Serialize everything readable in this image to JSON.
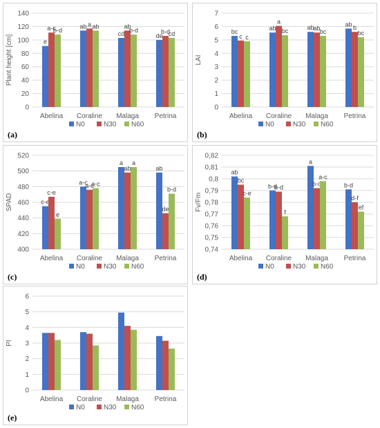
{
  "colors": {
    "N0": "#4472C4",
    "N30": "#C0504D",
    "N60": "#9BBB59"
  },
  "chart_data": [
    {
      "type": "bar",
      "panel_label": "(a)",
      "categories": [
        "Abelina",
        "Coraline",
        "Malaga",
        "Petrina"
      ],
      "series": [
        {
          "name": "N0",
          "values": [
            91,
            114,
            103,
            100
          ]
        },
        {
          "name": "N30",
          "values": [
            111,
            117,
            114,
            106
          ]
        },
        {
          "name": "N60",
          "values": [
            108,
            114,
            108,
            103
          ]
        }
      ],
      "letters": [
        [
          "e",
          "a-c",
          "b-d"
        ],
        [
          "ab",
          "a",
          "ab"
        ],
        [
          "cd",
          "ab",
          "b-d"
        ],
        [
          "de",
          "b-d",
          "cd"
        ]
      ],
      "ylabel": "Plant height [cm]",
      "ylim": [
        0,
        140
      ],
      "yticks": [
        0,
        20,
        40,
        60,
        80,
        100,
        120,
        140
      ],
      "ytick_labels": [
        "0",
        "20",
        "40",
        "60",
        "80",
        "100",
        "120",
        "140"
      ],
      "grid": true,
      "legend": "bottom"
    },
    {
      "type": "bar",
      "panel_label": "(b)",
      "categories": [
        "Abelina",
        "Coraline",
        "Malaga",
        "Petrina"
      ],
      "series": [
        {
          "name": "N0",
          "values": [
            5.3,
            5.55,
            5.6,
            5.85
          ]
        },
        {
          "name": "N30",
          "values": [
            4.95,
            6.05,
            5.55,
            5.6
          ]
        },
        {
          "name": "N60",
          "values": [
            4.9,
            5.35,
            5.3,
            5.2
          ]
        }
      ],
      "letters": [
        [
          "bc",
          "c",
          "c"
        ],
        [
          "ab",
          "a",
          "bc"
        ],
        [
          "ab",
          "ab",
          "bc"
        ],
        [
          "ab",
          "b",
          "bc"
        ]
      ],
      "ylabel": "LAI",
      "ylim": [
        0,
        7
      ],
      "yticks": [
        0,
        1,
        2,
        3,
        4,
        5,
        6,
        7
      ],
      "ytick_labels": [
        "0",
        "1",
        "2",
        "3",
        "4",
        "5",
        "6",
        "7"
      ],
      "grid": true,
      "legend": "bottom"
    },
    {
      "type": "bar",
      "panel_label": "(c)",
      "categories": [
        "Abelina",
        "Coraline",
        "Malaga",
        "Petrina"
      ],
      "series": [
        {
          "name": "N0",
          "values": [
            455,
            480,
            505,
            498
          ]
        },
        {
          "name": "N30",
          "values": [
            467,
            476,
            498,
            446
          ]
        },
        {
          "name": "N60",
          "values": [
            439,
            478,
            505,
            471
          ]
        }
      ],
      "letters": [
        [
          "c-e",
          "c-e",
          "e"
        ],
        [
          "a-c",
          "a-c",
          "a-c"
        ],
        [
          "a",
          "ab",
          "a"
        ],
        [
          "ab",
          "de",
          "b-d"
        ]
      ],
      "ylabel": "SPAD",
      "ylim": [
        400,
        520
      ],
      "yticks": [
        400,
        420,
        440,
        460,
        480,
        500,
        520
      ],
      "ytick_labels": [
        "400",
        "420",
        "440",
        "460",
        "480",
        "500",
        "520"
      ],
      "grid": true,
      "legend": "bottom"
    },
    {
      "type": "bar",
      "panel_label": "(d)",
      "categories": [
        "Abelina",
        "Coraline",
        "Malaga",
        "Petrina"
      ],
      "series": [
        {
          "name": "N0",
          "values": [
            0.802,
            0.79,
            0.811,
            0.791
          ]
        },
        {
          "name": "N30",
          "values": [
            0.795,
            0.789,
            0.792,
            0.78
          ]
        },
        {
          "name": "N60",
          "values": [
            0.784,
            0.768,
            0.798,
            0.772
          ]
        }
      ],
      "letters": [
        [
          "ab",
          "bc",
          "c-e"
        ],
        [
          "b-d",
          "b-d",
          "f"
        ],
        [
          "a",
          "b-d",
          "a-c"
        ],
        [
          "b-d",
          "d-f",
          "ef"
        ]
      ],
      "ylabel": "Fv/Fm",
      "ylim": [
        0.74,
        0.82
      ],
      "yticks": [
        0.74,
        0.75,
        0.76,
        0.77,
        0.78,
        0.79,
        0.8,
        0.81,
        0.82
      ],
      "ytick_labels": [
        "0,74",
        "0,75",
        "0,76",
        "0,77",
        "0,78",
        "0,79",
        "0,8",
        "0,81",
        "0,82"
      ],
      "grid": true,
      "legend": "bottom"
    },
    {
      "type": "bar",
      "panel_label": "(e)",
      "categories": [
        "Abelina",
        "Coraline",
        "Malaga",
        "Petrina"
      ],
      "series": [
        {
          "name": "N0",
          "values": [
            3.65,
            3.7,
            4.95,
            3.45
          ]
        },
        {
          "name": "N30",
          "values": [
            3.65,
            3.6,
            4.1,
            3.15
          ]
        },
        {
          "name": "N60",
          "values": [
            3.2,
            2.85,
            3.85,
            2.65
          ]
        }
      ],
      "letters": [],
      "ylabel": "PI",
      "ylim": [
        0,
        6
      ],
      "yticks": [
        0,
        1,
        2,
        3,
        4,
        5,
        6
      ],
      "ytick_labels": [
        "0",
        "1",
        "2",
        "3",
        "4",
        "5",
        "6"
      ],
      "grid": true,
      "legend": "bottom"
    }
  ]
}
